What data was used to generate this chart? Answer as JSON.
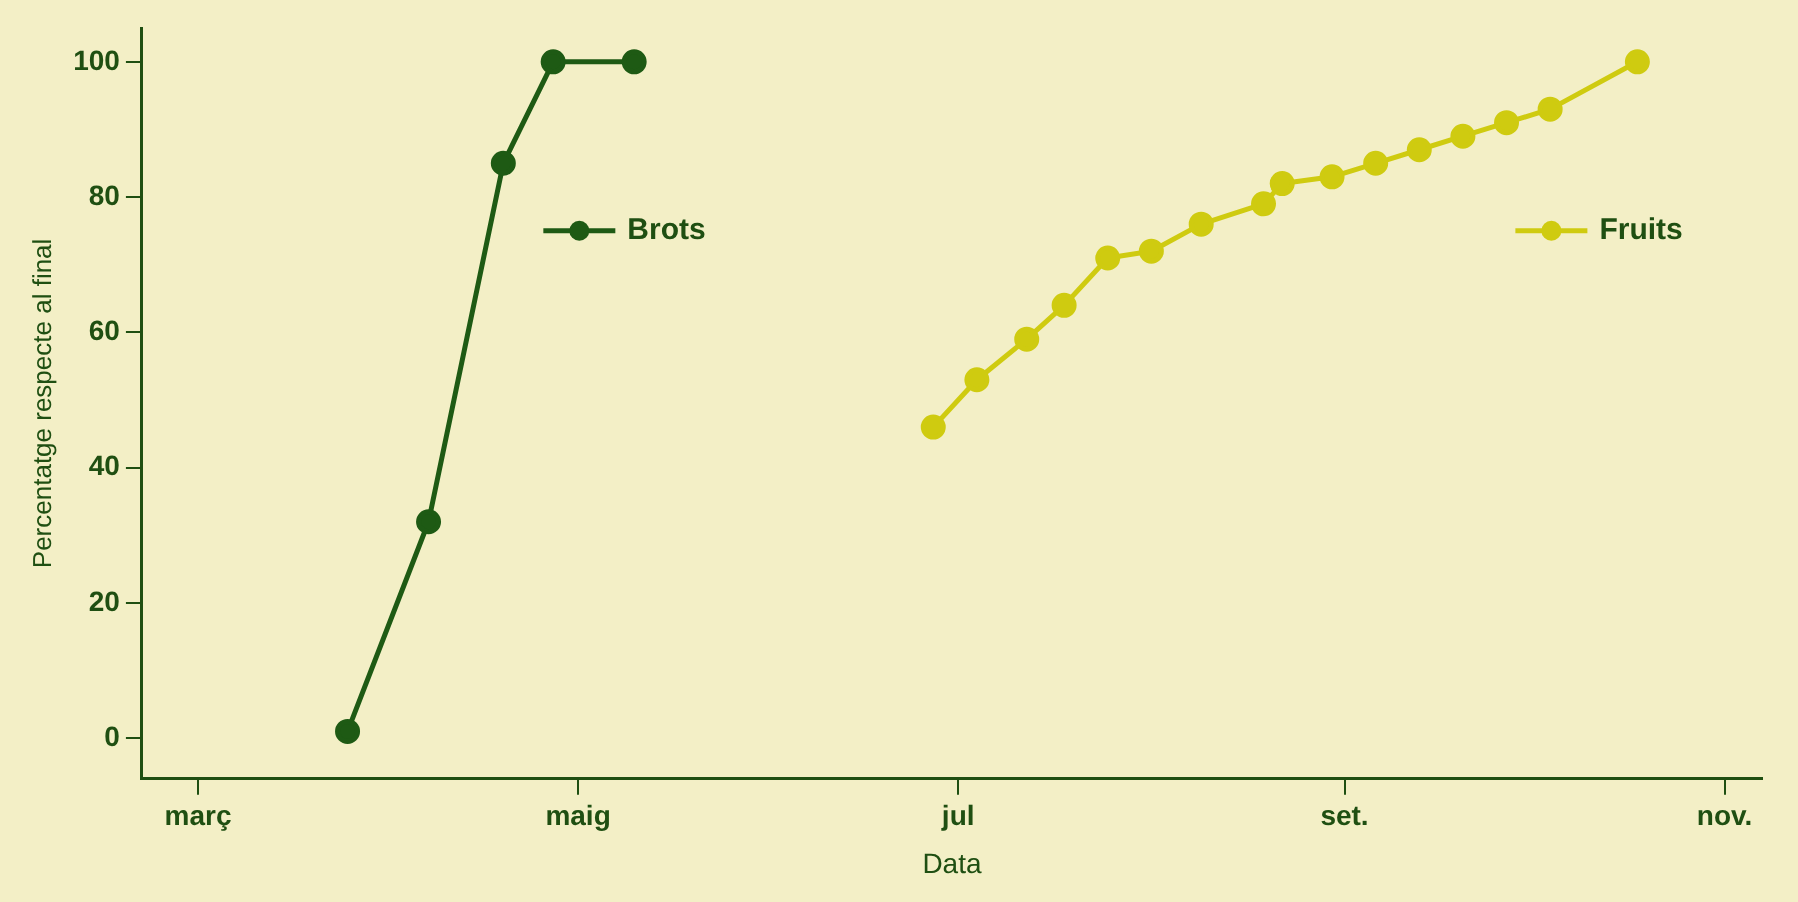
{
  "chart_data": {
    "type": "line",
    "xlabel": "Data",
    "ylabel": "Percentatge respecte al final",
    "xlim": [
      "--02-20",
      "--11-07"
    ],
    "xticks": [
      {
        "value": "--03-01",
        "label": "març"
      },
      {
        "value": "--05-01",
        "label": "maig"
      },
      {
        "value": "--07-01",
        "label": "jul"
      },
      {
        "value": "--09-01",
        "label": "set."
      },
      {
        "value": "--11-01",
        "label": "nov."
      }
    ],
    "ylim": [
      -6,
      105
    ],
    "yticks": [
      0,
      20,
      40,
      60,
      80,
      100
    ],
    "grid": false,
    "legend": "top",
    "marker": "circle",
    "line_style": "solid",
    "series": [
      {
        "name": "Brots",
        "color": "#1e5a14",
        "x": [
          "--03-25",
          "--04-07",
          "--04-19",
          "--04-27",
          "--05-10"
        ],
        "values": [
          1,
          32,
          85,
          100,
          100
        ]
      },
      {
        "name": "Fruits",
        "color": "#cfcb10",
        "x": [
          "--06-27",
          "--07-04",
          "--07-12",
          "--07-18",
          "--07-25",
          "--08-01",
          "--08-09",
          "--08-19",
          "--08-22",
          "--08-30",
          "--09-06",
          "--09-13",
          "--09-20",
          "--09-27",
          "--10-04",
          "--10-18"
        ],
        "values": [
          46,
          53,
          59,
          64,
          71,
          72,
          76,
          79,
          82,
          83,
          85,
          87,
          89,
          91,
          93,
          100
        ]
      }
    ]
  }
}
